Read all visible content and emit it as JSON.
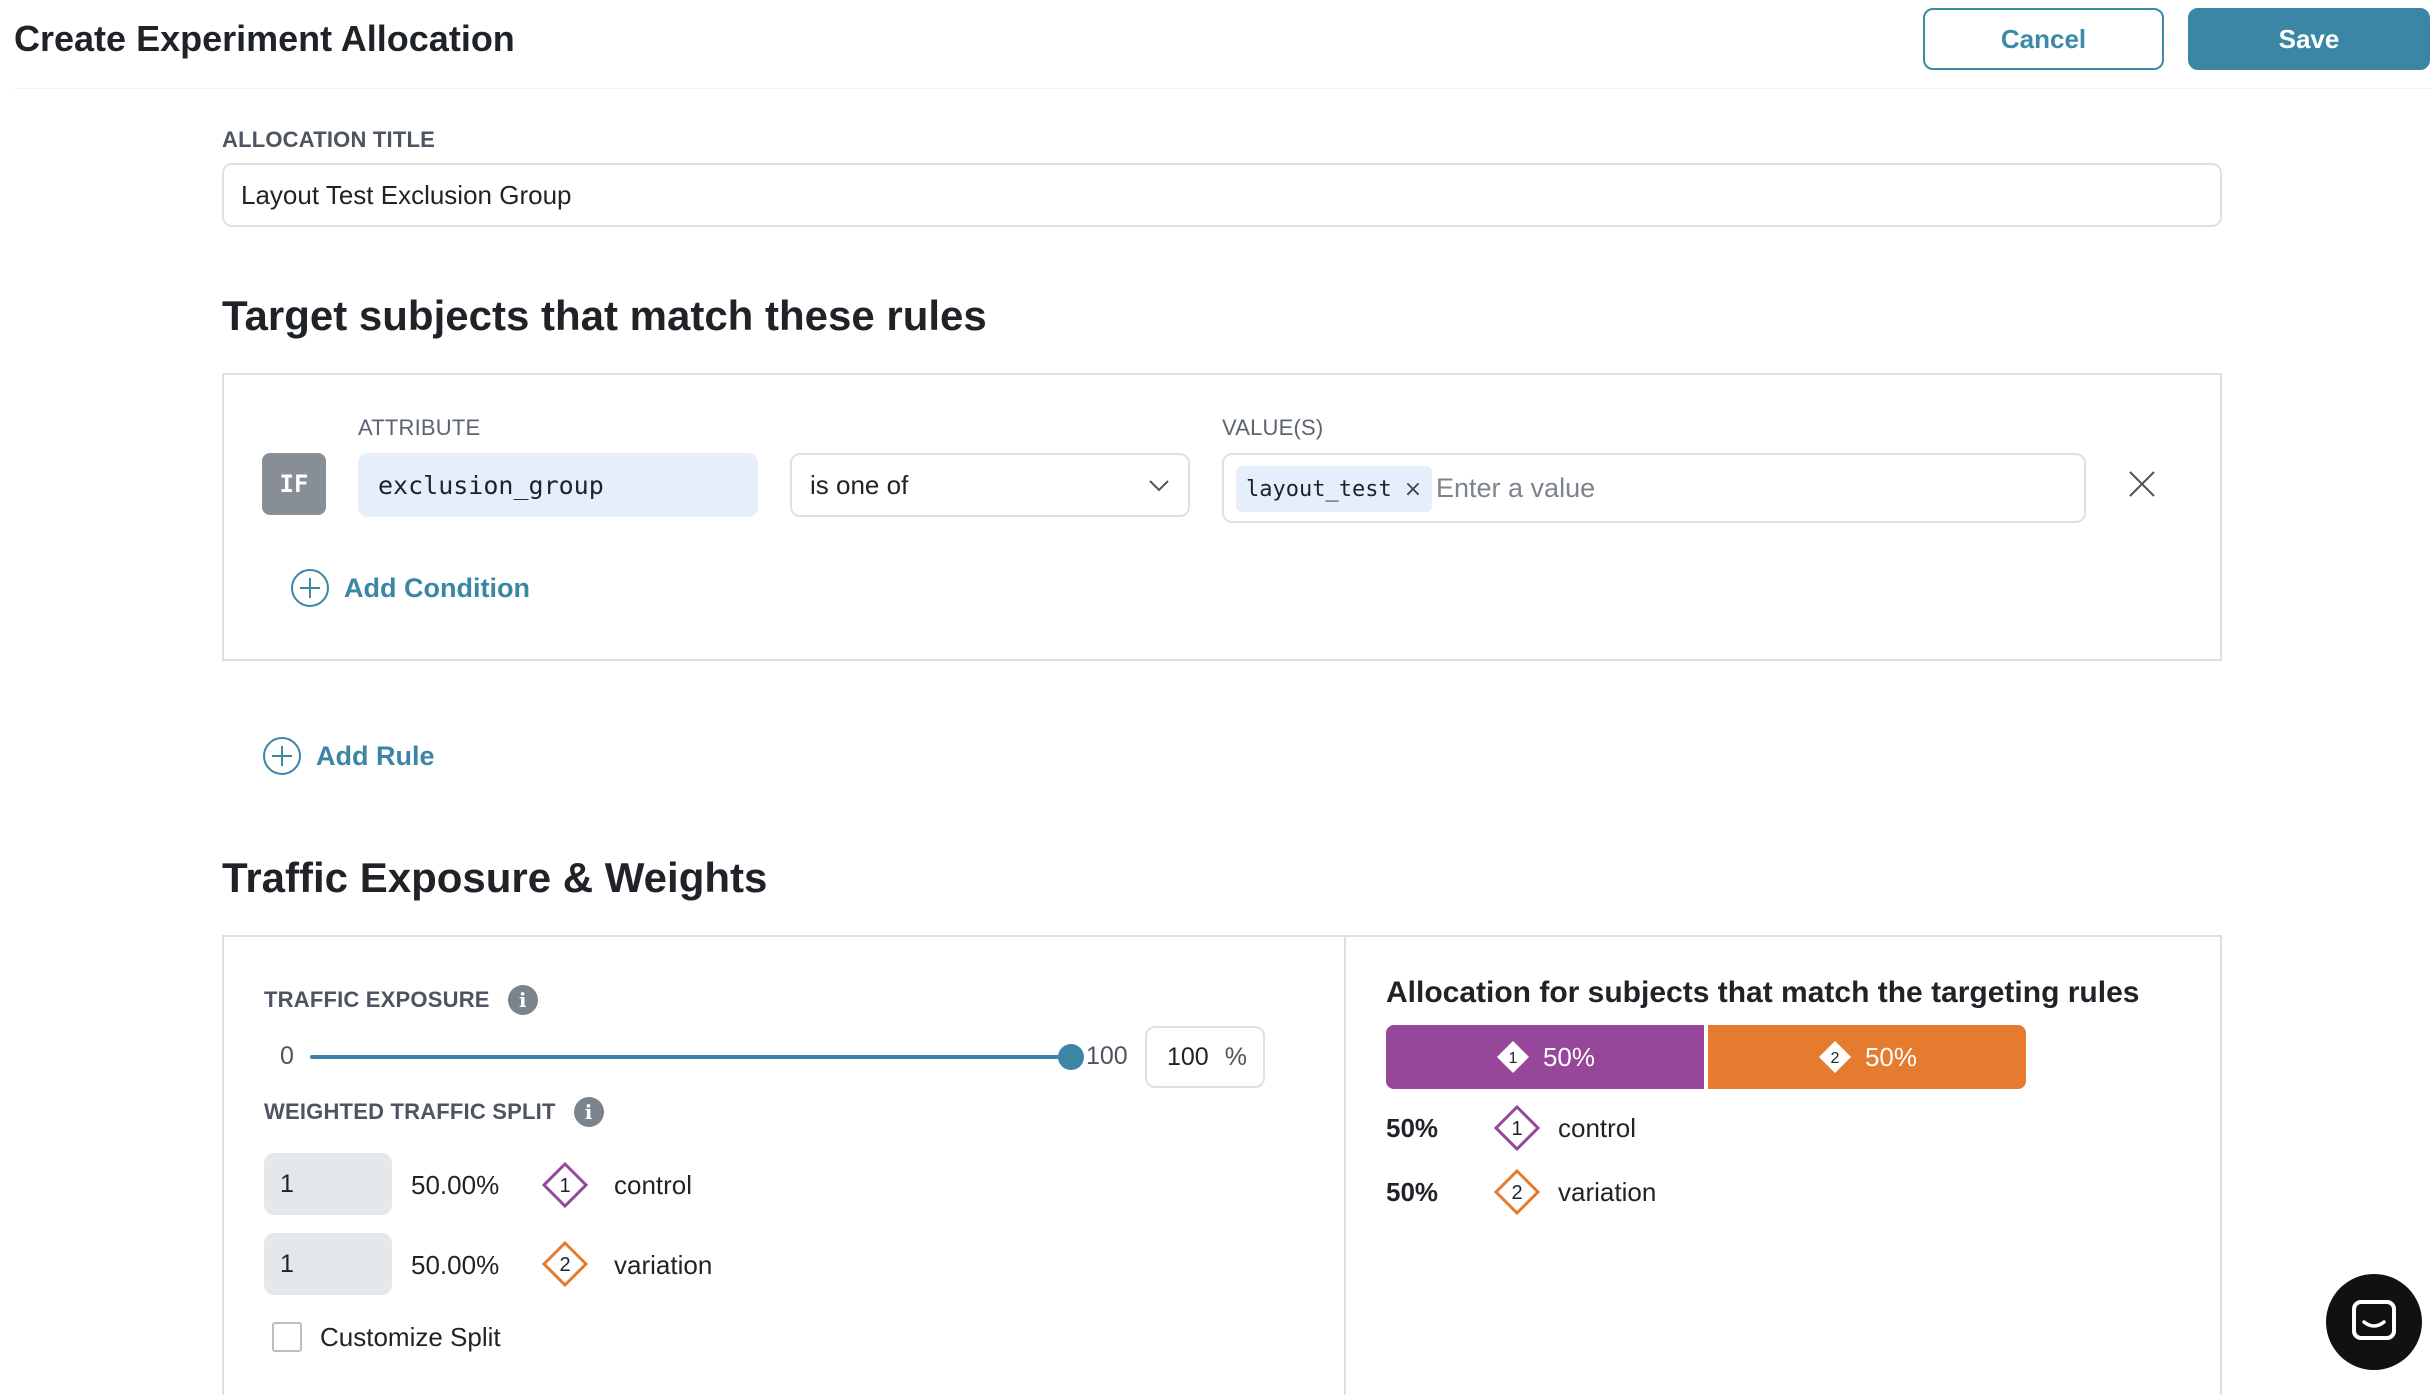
{
  "header": {
    "title": "Create Experiment Allocation",
    "cancel_label": "Cancel",
    "save_label": "Save"
  },
  "allocation": {
    "label": "ALLOCATION TITLE",
    "value": "Layout Test Exclusion Group"
  },
  "targeting": {
    "heading": "Target subjects that match these rules",
    "rule": {
      "if_badge": "IF",
      "attribute_label": "ATTRIBUTE",
      "attribute_value": "exclusion_group",
      "operator_value": "is one of",
      "values_label": "VALUE(S)",
      "chips": [
        "layout_test"
      ],
      "values_placeholder": "Enter a value"
    },
    "add_condition_label": "Add Condition",
    "add_rule_label": "Add Rule"
  },
  "traffic": {
    "heading": "Traffic Exposure & Weights",
    "exposure_label": "TRAFFIC EXPOSURE",
    "slider_min": "0",
    "slider_max": "100",
    "exposure_value": 100,
    "exposure_input": "100",
    "exposure_unit": "%",
    "split_label": "WEIGHTED TRAFFIC SPLIT",
    "variants": [
      {
        "weight": "1",
        "pct": "50.00%",
        "number": "1",
        "name": "control",
        "color": "#96479a"
      },
      {
        "weight": "1",
        "pct": "50.00%",
        "number": "2",
        "name": "variation",
        "color": "#e57b2e"
      }
    ],
    "customize_split_label": "Customize Split",
    "customize_split_checked": false
  },
  "allocation_summary": {
    "heading": "Allocation for subjects that match the targeting rules",
    "bar": [
      {
        "number": "1",
        "pct_label": "50%",
        "share": 0.5,
        "color": "#96479a"
      },
      {
        "number": "2",
        "pct_label": "50%",
        "share": 0.5,
        "color": "#e57b2e"
      }
    ],
    "legend": [
      {
        "pct": "50%",
        "number": "1",
        "name": "control"
      },
      {
        "pct": "50%",
        "number": "2",
        "name": "variation"
      }
    ]
  },
  "colors": {
    "accent": "#3b86a4",
    "control": "#96479a",
    "variation": "#e57b2e"
  },
  "icons": [
    "plus-circle-icon",
    "close-icon",
    "chevron-down-icon",
    "info-icon",
    "diamond-variant-icon",
    "chat-icon"
  ]
}
